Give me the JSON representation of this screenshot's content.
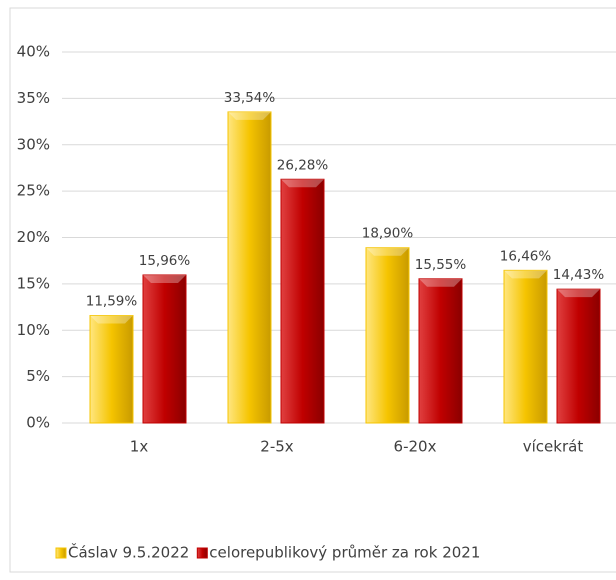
{
  "chart_data": {
    "type": "bar",
    "categories": [
      "1x",
      "2-5x",
      "6-20x",
      "vícekrát"
    ],
    "series": [
      {
        "name": "Čáslav 9.5.2022",
        "color": "#f5c400",
        "values": [
          11.59,
          33.54,
          18.9,
          16.46
        ],
        "value_labels": [
          "11,59%",
          "33,54%",
          "18,90%",
          "16,46%"
        ]
      },
      {
        "name": "celorepublikový průměr za rok 2021",
        "color": "#c00000",
        "values": [
          15.96,
          26.28,
          15.55,
          14.43
        ],
        "value_labels": [
          "15,96%",
          "26,28%",
          "15,55%",
          "14,43%"
        ]
      }
    ],
    "ylim": [
      0,
      40
    ],
    "yticks": [
      {
        "value": 0,
        "label": "0%"
      },
      {
        "value": 5,
        "label": "5%"
      },
      {
        "value": 10,
        "label": "10%"
      },
      {
        "value": 15,
        "label": "15%"
      },
      {
        "value": 20,
        "label": "20%"
      },
      {
        "value": 25,
        "label": "25%"
      },
      {
        "value": 30,
        "label": "30%"
      },
      {
        "value": 35,
        "label": "35%"
      },
      {
        "value": 40,
        "label": "40%"
      }
    ],
    "grid": true,
    "legend": "bottom"
  }
}
